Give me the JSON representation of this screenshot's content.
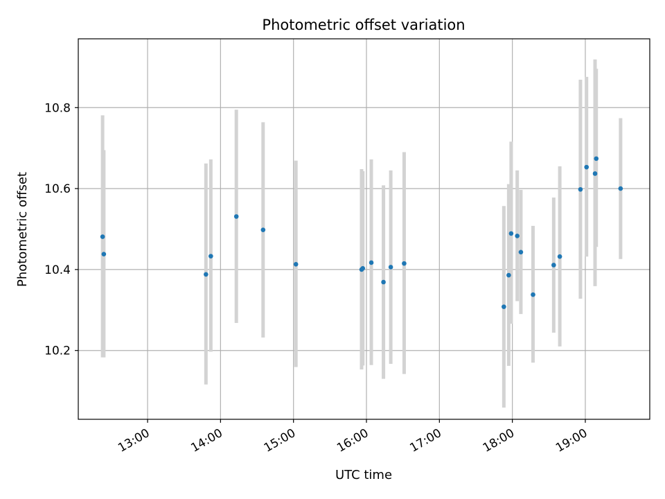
{
  "chart_data": {
    "type": "scatter",
    "title": "Photometric offset variation",
    "xlabel": "UTC time",
    "ylabel": "Photometric offset",
    "x_unit": "time of day (HH:MM, UTC)",
    "x_ticks": [
      "13:00",
      "14:00",
      "15:00",
      "16:00",
      "17:00",
      "18:00",
      "19:00"
    ],
    "y_ticks": [
      "10.2",
      "10.4",
      "10.6",
      "10.8"
    ],
    "xlim": [
      "12:03",
      "19:53"
    ],
    "ylim": [
      10.03,
      10.97
    ],
    "grid": true,
    "marker_color": "#1f77b4",
    "errorbar_color": "#d3d3d3",
    "series": [
      {
        "points": [
          {
            "x": "12:23",
            "y": 10.481,
            "ylow": 10.183,
            "yhigh": 10.781
          },
          {
            "x": "12:24",
            "y": 10.438,
            "ylow": 10.183,
            "yhigh": 10.695
          },
          {
            "x": "13:48",
            "y": 10.388,
            "ylow": 10.116,
            "yhigh": 10.662
          },
          {
            "x": "13:52",
            "y": 10.433,
            "ylow": 10.197,
            "yhigh": 10.672
          },
          {
            "x": "14:13",
            "y": 10.531,
            "ylow": 10.268,
            "yhigh": 10.795
          },
          {
            "x": "14:35",
            "y": 10.498,
            "ylow": 10.232,
            "yhigh": 10.764
          },
          {
            "x": "15:02",
            "y": 10.413,
            "ylow": 10.159,
            "yhigh": 10.669
          },
          {
            "x": "15:56",
            "y": 10.4,
            "ylow": 10.153,
            "yhigh": 10.648
          },
          {
            "x": "15:57",
            "y": 10.403,
            "ylow": 10.163,
            "yhigh": 10.643
          },
          {
            "x": "16:04",
            "y": 10.417,
            "ylow": 10.164,
            "yhigh": 10.672
          },
          {
            "x": "16:14",
            "y": 10.369,
            "ylow": 10.13,
            "yhigh": 10.608
          },
          {
            "x": "16:20",
            "y": 10.406,
            "ylow": 10.167,
            "yhigh": 10.645
          },
          {
            "x": "16:31",
            "y": 10.415,
            "ylow": 10.142,
            "yhigh": 10.69
          },
          {
            "x": "17:53",
            "y": 10.308,
            "ylow": 10.059,
            "yhigh": 10.557
          },
          {
            "x": "17:57",
            "y": 10.386,
            "ylow": 10.162,
            "yhigh": 10.611
          },
          {
            "x": "17:59",
            "y": 10.489,
            "ylow": 10.266,
            "yhigh": 10.716
          },
          {
            "x": "18:04",
            "y": 10.483,
            "ylow": 10.322,
            "yhigh": 10.645
          },
          {
            "x": "18:07",
            "y": 10.443,
            "ylow": 10.29,
            "yhigh": 10.597
          },
          {
            "x": "18:17",
            "y": 10.338,
            "ylow": 10.17,
            "yhigh": 10.508
          },
          {
            "x": "18:34",
            "y": 10.411,
            "ylow": 10.244,
            "yhigh": 10.578
          },
          {
            "x": "18:39",
            "y": 10.432,
            "ylow": 10.21,
            "yhigh": 10.655
          },
          {
            "x": "18:56",
            "y": 10.598,
            "ylow": 10.328,
            "yhigh": 10.869
          },
          {
            "x": "19:01",
            "y": 10.653,
            "ylow": 10.432,
            "yhigh": 10.876
          },
          {
            "x": "19:08",
            "y": 10.637,
            "ylow": 10.359,
            "yhigh": 10.919
          },
          {
            "x": "19:09",
            "y": 10.674,
            "ylow": 10.456,
            "yhigh": 10.896
          },
          {
            "x": "19:29",
            "y": 10.6,
            "ylow": 10.426,
            "yhigh": 10.774
          }
        ]
      }
    ]
  }
}
